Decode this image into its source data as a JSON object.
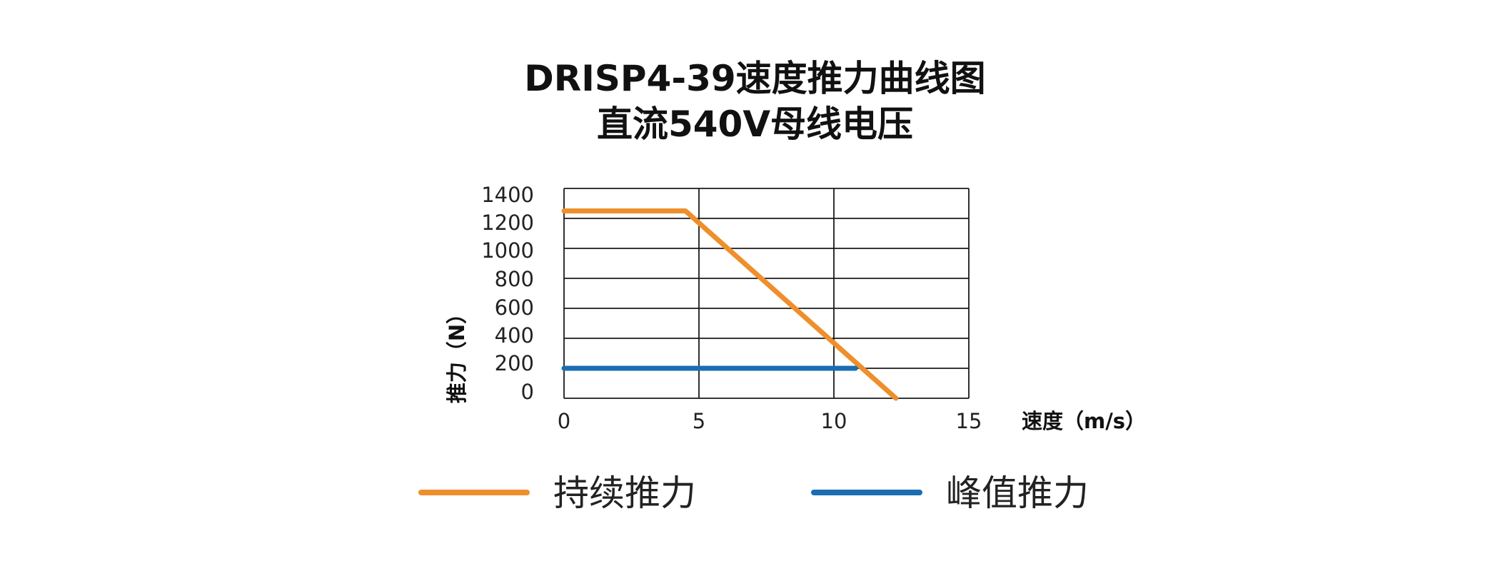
{
  "chart_data": {
    "type": "line",
    "title": "DRISP4-39速度推力曲线图",
    "subtitle": "直流540V母线电压",
    "xlabel": "速度（m/s）",
    "ylabel": "推力（N）",
    "xlim": [
      0,
      15
    ],
    "ylim": [
      0,
      1400
    ],
    "x_ticks": [
      "0",
      "5",
      "10",
      "15"
    ],
    "y_ticks": [
      "1400",
      "1200",
      "1000",
      "800",
      "600",
      "400",
      "200",
      "0"
    ],
    "grid": true,
    "legend_position": "bottom",
    "series": [
      {
        "name": "持续推力",
        "color": "#ee8f2c",
        "points": [
          [
            0,
            1250
          ],
          [
            4.5,
            1250
          ],
          [
            12.3,
            0
          ]
        ]
      },
      {
        "name": "峰值推力",
        "color": "#1a6db3",
        "points": [
          [
            0,
            200
          ],
          [
            10.8,
            200
          ]
        ]
      }
    ]
  }
}
